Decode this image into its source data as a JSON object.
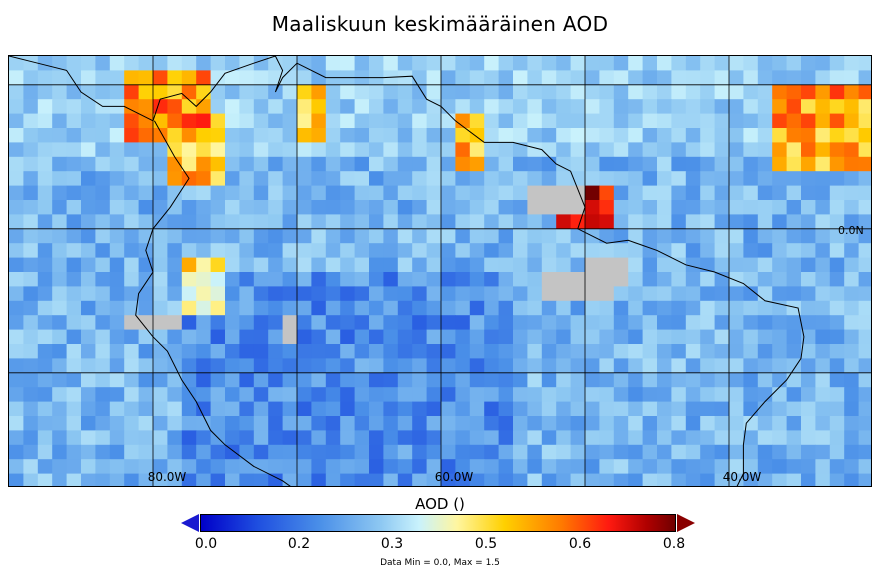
{
  "title": "Maaliskuun keskimääräinen AOD",
  "map": {
    "lon_range": [
      -90,
      -30
    ],
    "lat_range": [
      -18,
      12
    ],
    "gridlines_lon": [
      -80,
      -70,
      -60,
      -50,
      -40
    ],
    "gridlines_lat": [
      -10,
      0,
      10
    ],
    "lon_labels": [
      {
        "lon": -80,
        "text": "80.0W"
      },
      {
        "lon": -60,
        "text": "60.0W"
      },
      {
        "lon": -40,
        "text": "40.0W"
      }
    ],
    "lat_labels": [
      {
        "lat": 0,
        "text": "0.0N"
      }
    ],
    "missing_color": "#c4c4c4",
    "colormap": [
      "#0000c8",
      "#1f4fe0",
      "#4a8fe8",
      "#8ec8f2",
      "#c9f2fc",
      "#fff6a0",
      "#ffd000",
      "#ff7a00",
      "#ff1a10",
      "#b00000",
      "#700000"
    ]
  },
  "colorbar": {
    "title": "AOD ()",
    "min": 0.0,
    "max": 0.8,
    "ticks": [
      "0.0",
      "0.2",
      "0.3",
      "0.5",
      "0.6",
      "0.8"
    ],
    "footer": "Data Min = 0.0, Max = 1.5"
  }
}
